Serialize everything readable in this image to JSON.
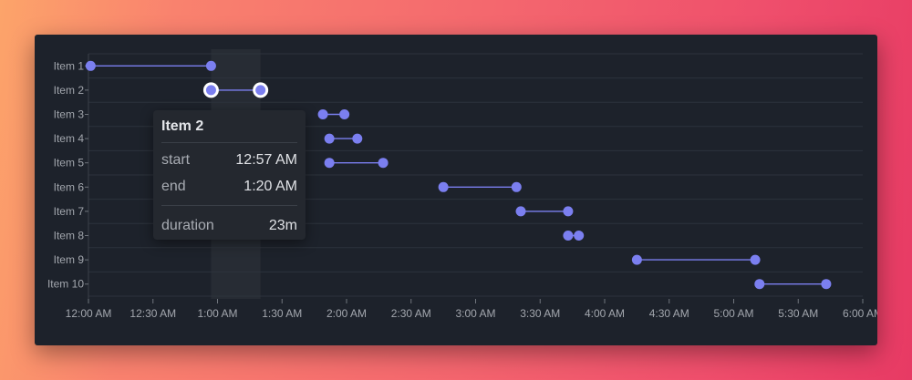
{
  "colors": {
    "accent": "#7b7ff0",
    "card": "#1d222b",
    "grid": "#2d333c",
    "axis_text": "#a3a7ae",
    "highlight": "#272c34"
  },
  "chart_data": {
    "type": "dumbbell",
    "x_unit": "minutes after 12:00 AM",
    "xlim": [
      0,
      360
    ],
    "x_ticks": [
      {
        "value": 0,
        "label": "12:00 AM"
      },
      {
        "value": 30,
        "label": "12:30 AM"
      },
      {
        "value": 60,
        "label": "1:00 AM"
      },
      {
        "value": 90,
        "label": "1:30 AM"
      },
      {
        "value": 120,
        "label": "2:00 AM"
      },
      {
        "value": 150,
        "label": "2:30 AM"
      },
      {
        "value": 180,
        "label": "3:00 AM"
      },
      {
        "value": 210,
        "label": "3:30 AM"
      },
      {
        "value": 240,
        "label": "4:00 AM"
      },
      {
        "value": 270,
        "label": "4:30 AM"
      },
      {
        "value": 300,
        "label": "5:00 AM"
      },
      {
        "value": 330,
        "label": "5:30 AM"
      },
      {
        "value": 360,
        "label": "6:00 AM"
      }
    ],
    "items": [
      {
        "label": "Item 1",
        "start": 1,
        "end": 57
      },
      {
        "label": "Item 2",
        "start": 57,
        "end": 80
      },
      {
        "label": "Item 3",
        "start": 109,
        "end": 119
      },
      {
        "label": "Item 4",
        "start": 112,
        "end": 125
      },
      {
        "label": "Item 5",
        "start": 112,
        "end": 137
      },
      {
        "label": "Item 6",
        "start": 165,
        "end": 199
      },
      {
        "label": "Item 7",
        "start": 201,
        "end": 223
      },
      {
        "label": "Item 8",
        "start": 223,
        "end": 228
      },
      {
        "label": "Item 9",
        "start": 255,
        "end": 310
      },
      {
        "label": "Item 10",
        "start": 312,
        "end": 343
      }
    ],
    "highlighted_item": 1,
    "highlight_band": [
      57,
      80
    ],
    "grid": true
  },
  "tooltip": {
    "title": "Item 2",
    "start_label": "start",
    "start_value": "12:57 AM",
    "end_label": "end",
    "end_value": "1:20 AM",
    "duration_label": "duration",
    "duration_value": "23m"
  }
}
